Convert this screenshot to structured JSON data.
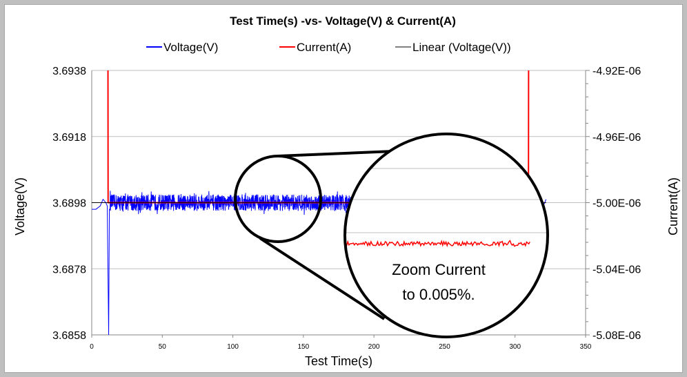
{
  "chart_data": {
    "type": "line",
    "title": "Test Time(s)  -vs- Voltage(V) & Current(A)",
    "xlabel": "Test Time(s)",
    "ylabel": "Voltage(V)",
    "y2label": "Current(A)",
    "xlim": [
      0,
      350
    ],
    "ylim": [
      3.6858,
      3.6938
    ],
    "y2lim": [
      -5.08e-06,
      -4.92e-06
    ],
    "x_ticks": [
      "0",
      "50",
      "100",
      "150",
      "200",
      "250",
      "300",
      "350"
    ],
    "y_ticks": [
      "3.6858",
      "3.6878",
      "3.6898",
      "3.6918",
      "3.6938"
    ],
    "y2_ticks": [
      "-5.08E-06",
      "-5.04E-06",
      "-5.00E-06",
      "-4.96E-06",
      "-4.92E-06"
    ],
    "grid": true,
    "legend_position": "top",
    "series": [
      {
        "name": "Voltage(V)",
        "axis": "left",
        "color": "#0000ff",
        "x": [
          0,
          3,
          6,
          8,
          10,
          11,
          12,
          12.5,
          13,
          50,
          100,
          150,
          200,
          250,
          300,
          310,
          312,
          314,
          316,
          318,
          320,
          322
        ],
        "values": [
          3.6896,
          3.6896,
          3.6897,
          3.6899,
          3.6898,
          3.6897,
          3.6858,
          3.6896,
          3.6898,
          3.6898,
          3.6898,
          3.6898,
          3.6898,
          3.6898,
          3.6898,
          3.6898,
          3.6896,
          3.6899,
          3.6898,
          3.6899,
          3.6897,
          3.6899
        ],
        "noise_amplitude": 0.00025
      },
      {
        "name": "Current(A)",
        "axis": "right",
        "color": "#ff0000",
        "x": [
          11.5,
          11.5,
          11.6,
          11.7,
          100,
          200,
          300,
          309.5,
          309.6,
          309.7
        ],
        "values": [
          -4.92e-06,
          -4.92e-06,
          -5e-06,
          -5e-06,
          -5e-06,
          -5e-06,
          -5e-06,
          -5e-06,
          -4.92e-06,
          -4.92e-06
        ]
      },
      {
        "name": "Linear (Voltage(V))",
        "axis": "left",
        "color": "#000000",
        "x": [
          0,
          322
        ],
        "values": [
          3.6898,
          3.6898
        ]
      }
    ],
    "annotation": {
      "line1": "Zoom Current",
      "line2": "to 0.005%."
    }
  }
}
